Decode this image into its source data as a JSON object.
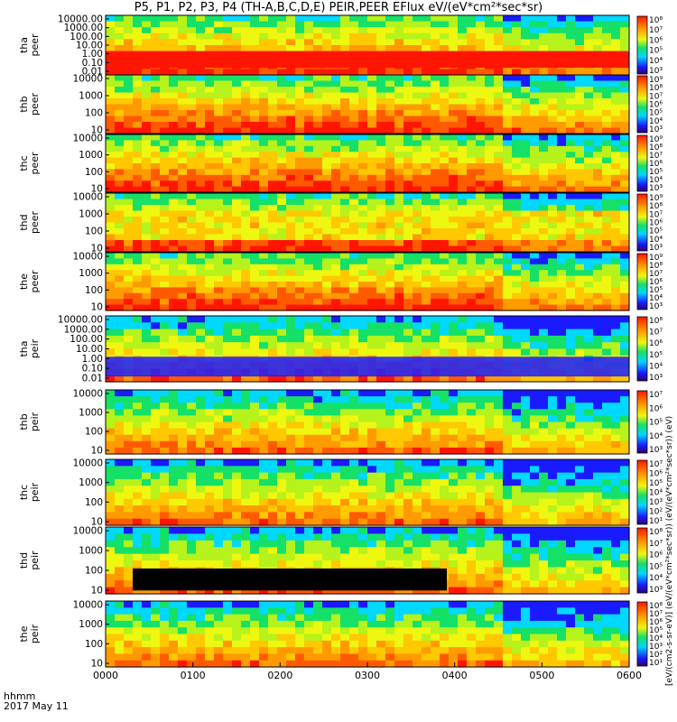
{
  "title": "P5, P1, P2, P3, P4 (TH-A,B,C,D,E) PEIR,PEER EFlux eV/(eV*cm²*sec*sr)",
  "colorbar_label": "[eV/(cm2-s-sr-eV)] (eV/(eV*cm²*sec*sr)) (eV/(eV*cm²*sec*sr)) (eV)",
  "x_labels": [
    "0000",
    "0100",
    "0200",
    "0300",
    "0400",
    "0500",
    "0600"
  ],
  "time_label": "hhmm",
  "date_label": "2017 May 11",
  "chart_data": {
    "type": "heatmap",
    "x_range_hhmm": [
      "0000",
      "0600"
    ],
    "panels": [
      {
        "label1": "tha",
        "label2": "peer",
        "yticks": [
          "10000.00",
          "1000.00",
          "100.00",
          "10.00",
          "1.00",
          "0.10",
          "0.01"
        ],
        "cbar_ticks": [
          "10⁸",
          "10⁷",
          "10⁶",
          "10⁵",
          "10⁴",
          "10³"
        ]
      },
      {
        "label1": "thb",
        "label2": "peer",
        "yticks": [
          "10000",
          "1000",
          "100",
          "10"
        ],
        "cbar_ticks": [
          "10⁹",
          "10⁸",
          "10⁷",
          "10⁶",
          "10⁵",
          "10⁴",
          "10³"
        ]
      },
      {
        "label1": "thc",
        "label2": "peer",
        "yticks": [
          "10000",
          "1000",
          "100",
          "10"
        ],
        "cbar_ticks": [
          "10⁹",
          "10⁸",
          "10⁷",
          "10⁶",
          "10⁵",
          "10⁴",
          "10³"
        ]
      },
      {
        "label1": "thd",
        "label2": "peer",
        "yticks": [
          "10000",
          "1000",
          "100",
          "10"
        ],
        "cbar_ticks": [
          "10⁹",
          "10⁸",
          "10⁷",
          "10⁶",
          "10⁵",
          "10⁴",
          "10³"
        ]
      },
      {
        "label1": "the",
        "label2": "peer",
        "yticks": [
          "10000",
          "1000",
          "100",
          "10"
        ],
        "cbar_ticks": [
          "10⁹",
          "10⁸",
          "10⁷",
          "10⁶",
          "10⁵",
          "10⁴",
          "10³"
        ]
      },
      {
        "label1": "tha",
        "label2": "peir",
        "yticks": [
          "10000.00",
          "1000.00",
          "100.00",
          "10.00",
          "1.00",
          "0.10",
          "0.01"
        ],
        "cbar_ticks": [
          "10⁸",
          "10⁷",
          "10⁶",
          "10⁵",
          "10⁴",
          "10³"
        ]
      },
      {
        "label1": "thb",
        "label2": "peir",
        "yticks": [
          "10000",
          "1000",
          "100",
          "10"
        ],
        "cbar_ticks": [
          "10⁷",
          "10⁶",
          "10⁵",
          "10⁴",
          "10³"
        ]
      },
      {
        "label1": "thc",
        "label2": "peir",
        "yticks": [
          "10000",
          "1000",
          "100",
          "10"
        ],
        "cbar_ticks": [
          "10⁷",
          "10⁶",
          "10⁵",
          "10⁴",
          "10³",
          "10²",
          "10¹"
        ]
      },
      {
        "label1": "thd",
        "label2": "peir",
        "yticks": [
          "10000",
          "1000",
          "100",
          "10"
        ],
        "cbar_ticks": [
          "10⁸",
          "10⁷",
          "10⁶",
          "10⁵",
          "10⁴",
          "10³"
        ]
      },
      {
        "label1": "the",
        "label2": "peir",
        "yticks": [
          "10000",
          "1000",
          "100",
          "10"
        ],
        "cbar_ticks": [
          "10⁸",
          "10⁷",
          "10⁶",
          "10⁵",
          "10⁴",
          "10³",
          "10²",
          "10¹"
        ]
      }
    ]
  }
}
